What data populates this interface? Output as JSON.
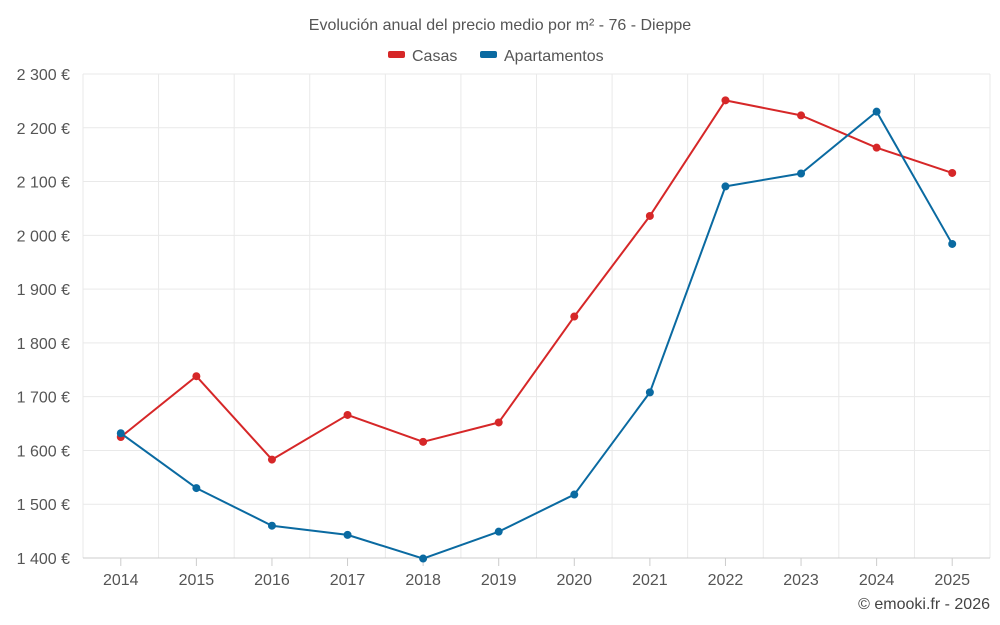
{
  "chart_data": {
    "type": "line",
    "title": "Evolución anual del precio medio por m² - 76 - Dieppe",
    "categories": [
      "2014",
      "2015",
      "2016",
      "2017",
      "2018",
      "2019",
      "2020",
      "2021",
      "2022",
      "2023",
      "2024",
      "2025"
    ],
    "series": [
      {
        "name": "Casas",
        "color": "#d62728",
        "values": [
          1625,
          1738,
          1583,
          1666,
          1616,
          1652,
          1849,
          2036,
          2251,
          2223,
          2163,
          2116
        ]
      },
      {
        "name": "Apartamentos",
        "color": "#0a6aa1",
        "values": [
          1632,
          1530,
          1460,
          1443,
          1399,
          1449,
          1518,
          1708,
          2091,
          2115,
          2230,
          1984
        ]
      }
    ],
    "ylim": [
      1400,
      2300
    ],
    "yticks": [
      1400,
      1500,
      1600,
      1700,
      1800,
      1900,
      2000,
      2100,
      2200,
      2300
    ],
    "ytick_labels": [
      "1 400 €",
      "1 500 €",
      "1 600 €",
      "1 700 €",
      "1 800 €",
      "1 900 €",
      "2 000 €",
      "2 100 €",
      "2 200 €",
      "2 300 €"
    ],
    "xlabel": "",
    "ylabel": "",
    "legend_position": "top-center",
    "grid": true
  },
  "credit": "© emooki.fr - 2026"
}
